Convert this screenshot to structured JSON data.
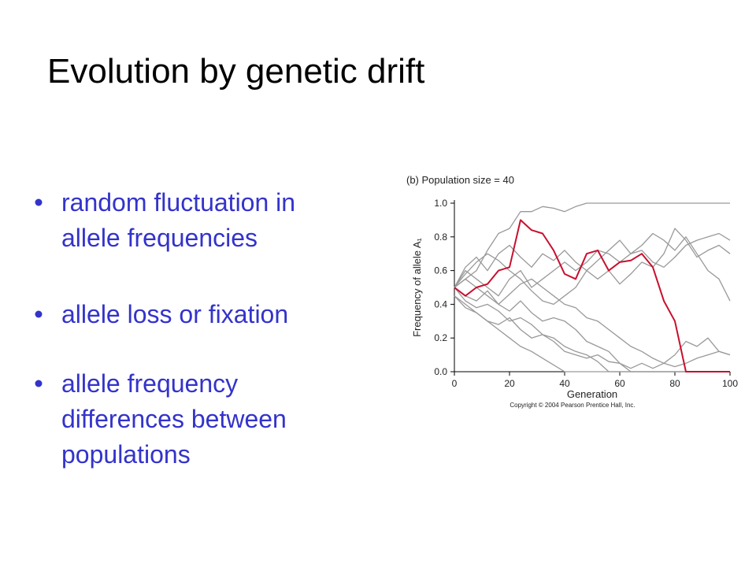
{
  "slide": {
    "title": "Evolution by genetic drift",
    "bullets": [
      [
        "random fluctuation in",
        "allele frequencies"
      ],
      [
        "allele loss or fixation"
      ],
      [
        "allele frequency",
        "differences between",
        "populations"
      ]
    ]
  },
  "chart_data": {
    "type": "line",
    "subtitle": "(b) Population size = 40",
    "x_label": "Generation",
    "y_label": "Frequency of allele A₁",
    "note": "Copyright © 2004 Pearson Prentice Hall, Inc.",
    "x": [
      0,
      4,
      8,
      12,
      16,
      20,
      24,
      28,
      32,
      36,
      40,
      44,
      48,
      52,
      56,
      60,
      64,
      68,
      72,
      76,
      80,
      84,
      88,
      92,
      96,
      100
    ],
    "xlim": [
      0,
      100
    ],
    "xticks": [
      0,
      20,
      40,
      60,
      80,
      100
    ],
    "ylim": [
      0,
      1
    ],
    "yticks": [
      {
        "value": 0,
        "label": "0.0"
      },
      0.2,
      0.4,
      0.6,
      0.8,
      {
        "value": 1,
        "label": "1.0"
      }
    ],
    "series": [
      {
        "color": "#999999",
        "values": [
          0.5,
          0.55,
          0.6,
          0.72,
          0.82,
          0.85,
          0.95,
          0.95,
          0.98,
          0.97,
          0.95,
          0.98,
          1,
          1,
          1,
          1,
          1,
          1,
          1,
          1,
          1,
          1,
          1,
          1,
          1,
          1
        ]
      },
      {
        "color": "#999999",
        "values": [
          0.5,
          0.6,
          0.55,
          0.5,
          0.45,
          0.55,
          0.6,
          0.5,
          0.55,
          0.6,
          0.65,
          0.6,
          0.65,
          0.72,
          0.7,
          0.65,
          0.7,
          0.72,
          0.65,
          0.62,
          0.68,
          0.75,
          0.78,
          0.8,
          0.82,
          0.78
        ]
      },
      {
        "color": "#999999",
        "values": [
          0.5,
          0.62,
          0.68,
          0.6,
          0.7,
          0.75,
          0.68,
          0.62,
          0.7,
          0.66,
          0.72,
          0.65,
          0.6,
          0.66,
          0.72,
          0.78,
          0.7,
          0.75,
          0.82,
          0.78,
          0.72,
          0.8,
          0.7,
          0.6,
          0.55,
          0.42
        ]
      },
      {
        "color": "#999999",
        "values": [
          0.5,
          0.58,
          0.65,
          0.7,
          0.66,
          0.6,
          0.55,
          0.48,
          0.42,
          0.4,
          0.45,
          0.5,
          0.6,
          0.55,
          0.6,
          0.52,
          0.58,
          0.65,
          0.62,
          0.7,
          0.85,
          0.78,
          0.68,
          0.72,
          0.75,
          0.7
        ]
      },
      {
        "color": "#999999",
        "values": [
          0.45,
          0.4,
          0.35,
          0.3,
          0.25,
          0.2,
          0.15,
          0.12,
          0.08,
          0.04,
          0,
          0,
          0,
          0,
          0,
          0,
          0,
          0,
          0,
          0,
          0,
          0,
          0,
          0,
          0,
          0
        ]
      },
      {
        "color": "#999999",
        "values": [
          0.5,
          0.42,
          0.38,
          0.4,
          0.36,
          0.3,
          0.32,
          0.28,
          0.22,
          0.2,
          0.15,
          0.12,
          0.1,
          0.06,
          0,
          0,
          0,
          0,
          0,
          0,
          0,
          0,
          0,
          0,
          0,
          0
        ]
      },
      {
        "color": "#999999",
        "values": [
          0.45,
          0.38,
          0.35,
          0.3,
          0.28,
          0.32,
          0.25,
          0.2,
          0.22,
          0.18,
          0.12,
          0.1,
          0.08,
          0.1,
          0.06,
          0.05,
          0.02,
          0.05,
          0.02,
          0.05,
          0.1,
          0.18,
          0.15,
          0.2,
          0.12,
          0.1
        ]
      },
      {
        "color": "#999999",
        "values": [
          0.5,
          0.45,
          0.42,
          0.48,
          0.4,
          0.36,
          0.42,
          0.35,
          0.3,
          0.32,
          0.3,
          0.25,
          0.18,
          0.15,
          0.12,
          0.05,
          0,
          0,
          0,
          0,
          0,
          0,
          0,
          0,
          0,
          0
        ]
      },
      {
        "color": "#999999",
        "values": [
          0.5,
          0.55,
          0.5,
          0.45,
          0.4,
          0.46,
          0.52,
          0.55,
          0.5,
          0.45,
          0.4,
          0.38,
          0.32,
          0.3,
          0.25,
          0.2,
          0.15,
          0.12,
          0.08,
          0.05,
          0.03,
          0.05,
          0.08,
          0.1,
          0.12,
          0.1
        ]
      },
      {
        "color": "#c8102e",
        "values": [
          0.5,
          0.45,
          0.5,
          0.52,
          0.6,
          0.62,
          0.9,
          0.84,
          0.82,
          0.72,
          0.58,
          0.55,
          0.7,
          0.72,
          0.6,
          0.65,
          0.66,
          0.7,
          0.62,
          0.42,
          0.3,
          0,
          0,
          0,
          0,
          0
        ]
      }
    ]
  }
}
